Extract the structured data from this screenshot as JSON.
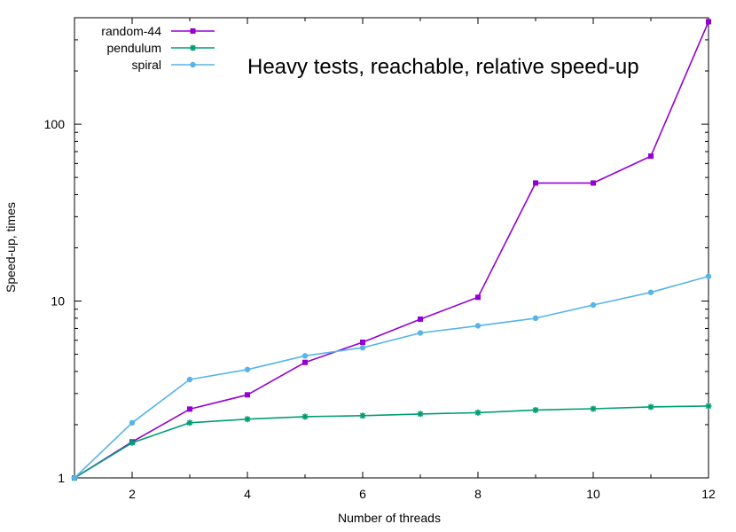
{
  "chart_data": {
    "type": "line",
    "title": "Heavy tests, reachable, relative speed-up",
    "xlabel": "Number of threads",
    "ylabel": "Speed-up, times",
    "xlim": [
      1,
      12
    ],
    "ylim": [
      1,
      400
    ],
    "yscale": "log",
    "xticks": [
      2,
      4,
      6,
      8,
      10,
      12
    ],
    "yticks": [
      1,
      10,
      100
    ],
    "grid": false,
    "legend_position": "top-left",
    "x": [
      1,
      2,
      3,
      4,
      5,
      6,
      7,
      8,
      9,
      10,
      11,
      12
    ],
    "series": [
      {
        "name": "random-44",
        "color": "#9400d3",
        "marker": "square-icon",
        "values": [
          1,
          1.6,
          2.45,
          2.95,
          4.5,
          5.85,
          7.9,
          10.5,
          46.5,
          46.5,
          66,
          380
        ]
      },
      {
        "name": "pendulum",
        "color": "#009e73",
        "marker": "star-icon",
        "values": [
          1,
          1.58,
          2.05,
          2.15,
          2.22,
          2.25,
          2.3,
          2.34,
          2.42,
          2.46,
          2.52,
          2.55
        ]
      },
      {
        "name": "spiral",
        "color": "#56b4e9",
        "marker": "circle-icon",
        "values": [
          1,
          2.05,
          3.6,
          4.1,
          4.9,
          5.45,
          6.6,
          7.25,
          8.0,
          9.5,
          11.2,
          13.8
        ]
      }
    ]
  }
}
